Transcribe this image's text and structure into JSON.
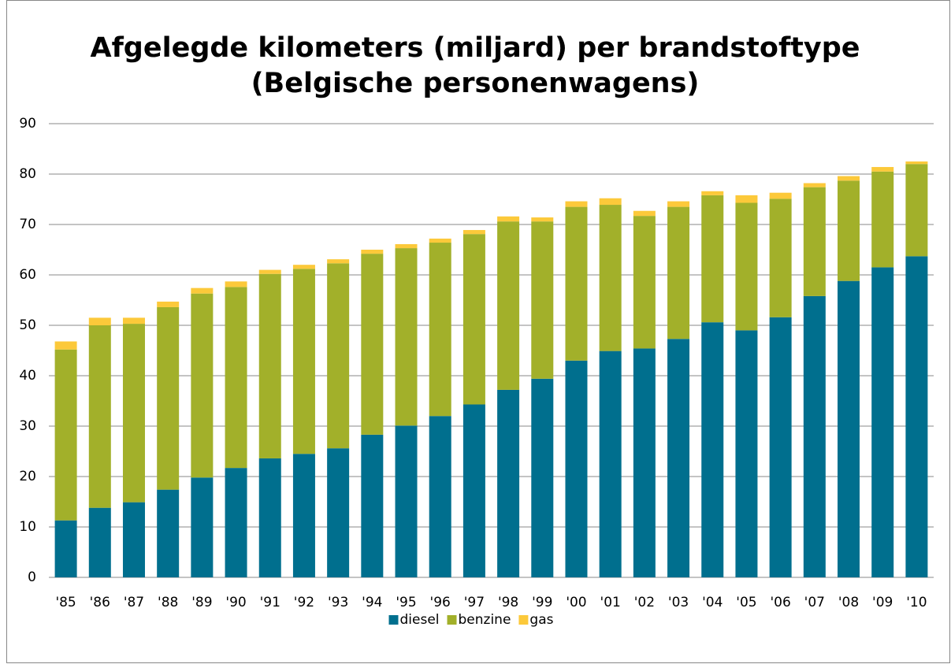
{
  "chart_data": {
    "type": "stacked_bar",
    "title": "Afgelegde kilometers (miljard) per brandstoftype",
    "subtitle": "(Belgische personenwagens)",
    "categories": [
      "'85",
      "'86",
      "'87",
      "'88",
      "'89",
      "'90",
      "'91",
      "'92",
      "'93",
      "'94",
      "'95",
      "'96",
      "'97",
      "'98",
      "'99",
      "'00",
      "'01",
      "'02",
      "'03",
      "'04",
      "'05",
      "'06",
      "'07",
      "'08",
      "'09",
      "'10"
    ],
    "series": [
      {
        "name": "diesel",
        "color": "#006f8e",
        "values": [
          11.3,
          13.8,
          14.9,
          17.4,
          19.8,
          21.7,
          23.6,
          24.5,
          25.6,
          28.3,
          30.1,
          32.0,
          34.3,
          37.2,
          39.4,
          43.0,
          44.9,
          45.4,
          47.3,
          50.6,
          49.0,
          51.6,
          55.8,
          58.8,
          61.5,
          63.7
        ]
      },
      {
        "name": "benzine",
        "color": "#a2b02a",
        "values": [
          33.9,
          36.2,
          35.4,
          36.2,
          36.5,
          35.9,
          36.6,
          36.7,
          36.7,
          35.9,
          35.2,
          34.4,
          33.8,
          33.4,
          31.2,
          30.5,
          29.0,
          26.3,
          26.2,
          25.2,
          25.3,
          23.5,
          21.6,
          19.9,
          19.0,
          18.3
        ]
      },
      {
        "name": "gas",
        "color": "#fcc93a",
        "values": [
          1.6,
          1.5,
          1.2,
          1.1,
          1.1,
          1.1,
          0.8,
          0.8,
          0.8,
          0.8,
          0.8,
          0.8,
          0.8,
          1.0,
          0.8,
          1.1,
          1.3,
          1.0,
          1.1,
          0.8,
          1.5,
          1.2,
          0.8,
          0.9,
          0.9,
          0.5
        ]
      }
    ],
    "ylim": [
      0,
      90
    ],
    "yticks": [
      0,
      10,
      20,
      30,
      40,
      50,
      60,
      70,
      80,
      90
    ],
    "grid": true,
    "legend": "bottom"
  }
}
